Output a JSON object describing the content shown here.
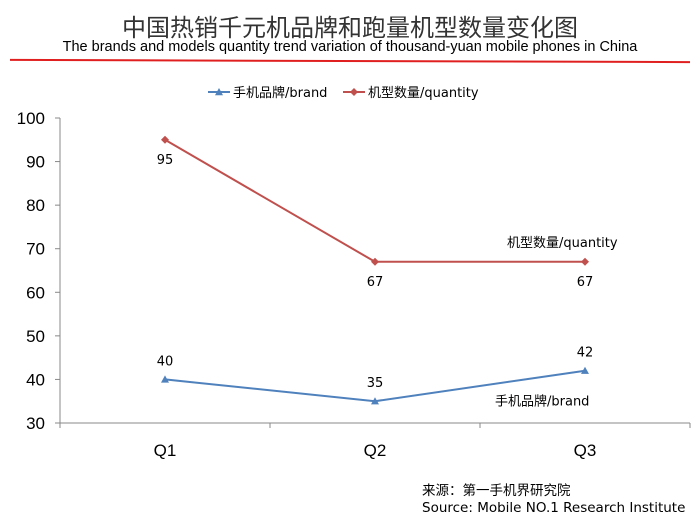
{
  "title_cn": "中国热销千元机品牌和跑量机型数量变化图",
  "title_en": "The brands and models quantity trend variation of thousand-yuan mobile phones in China",
  "source_cn": "来源：第一手机界研究院",
  "source_en": "Source: Mobile NO.1 Research Institute",
  "chart_data": {
    "type": "line",
    "categories": [
      "Q1",
      "Q2",
      "Q3"
    ],
    "ylim": [
      30,
      100
    ],
    "yticks": [
      30,
      40,
      50,
      60,
      70,
      80,
      90,
      100
    ],
    "grid": false,
    "legend_placement": "top",
    "series": [
      {
        "name": "手机品牌/brand",
        "values": [
          40,
          35,
          42
        ],
        "color": "#4f81bd",
        "marker": "triangle",
        "annotation": "手机品牌/brand"
      },
      {
        "name": "机型数量/quantity",
        "values": [
          95,
          67,
          67
        ],
        "color": "#c0504d",
        "marker": "diamond",
        "annotation": "机型数量/quantity"
      }
    ]
  }
}
